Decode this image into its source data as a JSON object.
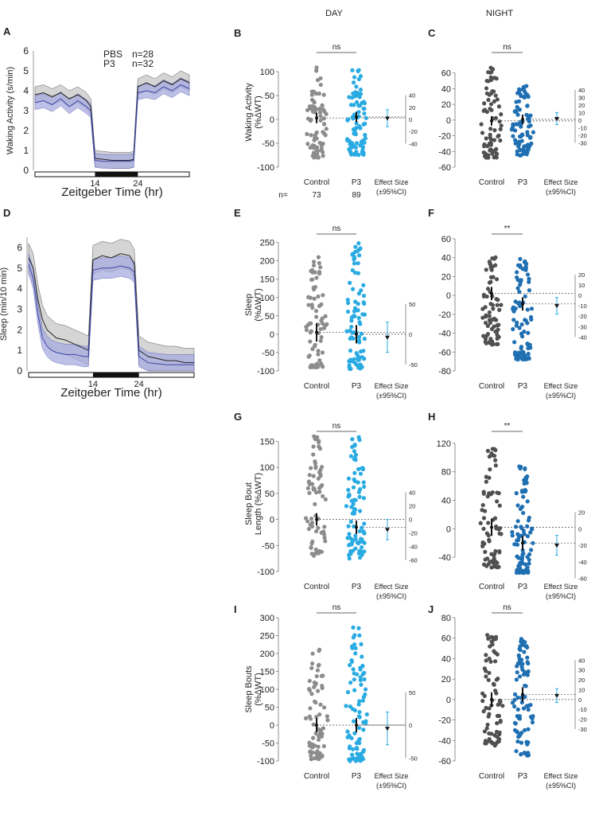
{
  "header": {
    "day": "DAY",
    "night": "NIGHT"
  },
  "colors": {
    "control_day": "#8c8c8c",
    "control_night": "#505050",
    "p3_day": "#29abe2",
    "p3_night": "#1f6fb2",
    "pbs_trace": "#222222",
    "pbs_band": "#c8c8c8",
    "p3_trace": "#3c46a5",
    "p3_band": "#a8acdf"
  },
  "chart_data": [
    {
      "id": "A",
      "letter": "A",
      "type": "line",
      "ylabel": "Waking Activity (s/min)",
      "xlabel": "Zeitgeber Time (hr)",
      "ylim": [
        0,
        6
      ],
      "yticks": [
        "0",
        "1",
        "2",
        "3",
        "4",
        "5",
        "6"
      ],
      "xticks": [
        {
          "value": 14,
          "label": "14"
        },
        {
          "value": 24,
          "label": "24"
        }
      ],
      "xlim": [
        0,
        36
      ],
      "dark_period": [
        14,
        24
      ],
      "legend": [
        {
          "name": "PBS",
          "n": "n=28"
        },
        {
          "name": "P3",
          "n": "n=32"
        }
      ],
      "series": [
        {
          "name": "PBS",
          "x": [
            0,
            2,
            4,
            6,
            8,
            10,
            12,
            13,
            14,
            16,
            18,
            20,
            22,
            23,
            24,
            26,
            28,
            30,
            32,
            34,
            36
          ],
          "y": [
            3.8,
            3.9,
            3.7,
            3.9,
            3.6,
            3.8,
            3.5,
            3.2,
            0.6,
            0.55,
            0.5,
            0.5,
            0.5,
            0.55,
            4.2,
            4.4,
            4.2,
            4.5,
            4.3,
            4.6,
            4.4
          ],
          "band": 0.4
        },
        {
          "name": "P3",
          "x": [
            0,
            2,
            4,
            6,
            8,
            10,
            12,
            13,
            14,
            16,
            18,
            20,
            22,
            23,
            24,
            26,
            28,
            30,
            32,
            34,
            36
          ],
          "y": [
            3.4,
            3.5,
            3.3,
            3.6,
            3.2,
            3.5,
            3.2,
            3.0,
            0.5,
            0.45,
            0.45,
            0.45,
            0.45,
            0.5,
            3.9,
            4.0,
            3.9,
            4.2,
            4.0,
            4.3,
            4.1
          ],
          "band": 0.35
        }
      ]
    },
    {
      "id": "B",
      "letter": "B",
      "type": "scatter",
      "period": "day",
      "ylabel1": "Waking Activity",
      "ylabel2": "(%ΔWT)",
      "ylim": [
        -100,
        130
      ],
      "yticks": [
        -100,
        -50,
        0,
        50,
        100
      ],
      "sig": "ns",
      "groups": [
        {
          "label": "Control",
          "n": "73",
          "mean": 3,
          "ci": [
            -8,
            14
          ],
          "count": 73,
          "range": [
            -80,
            110
          ]
        },
        {
          "label": "P3",
          "n": "89",
          "mean": 5,
          "ci": [
            -6,
            16
          ],
          "count": 89,
          "range": [
            -75,
            110
          ]
        }
      ],
      "n_label": "n=",
      "effect": {
        "label1": "Effect Size",
        "label2": "(±95%CI)",
        "mean": 2,
        "ci": [
          -12,
          16
        ],
        "ylim": [
          -50,
          50
        ],
        "yticks": [
          40,
          20,
          0,
          -20,
          -40
        ]
      }
    },
    {
      "id": "C",
      "letter": "C",
      "type": "scatter",
      "period": "night",
      "ylabel1": "",
      "ylabel2": "",
      "ylim": [
        -60,
        80
      ],
      "yticks": [
        -60,
        -40,
        -20,
        0,
        20,
        40,
        60
      ],
      "sig": "ns",
      "groups": [
        {
          "label": "Control",
          "mean": -1,
          "ci": [
            -7,
            5
          ],
          "count": 73,
          "range": [
            -48,
            68
          ]
        },
        {
          "label": "P3",
          "mean": 1,
          "ci": [
            -5,
            7
          ],
          "count": 89,
          "range": [
            -45,
            45
          ]
        }
      ],
      "effect": {
        "label1": "Effect Size",
        "label2": "(±95%CI)",
        "mean": 2,
        "ci": [
          -6,
          10
        ],
        "ylim": [
          -35,
          45
        ],
        "yticks": [
          40,
          30,
          20,
          10,
          0,
          -10,
          -20,
          -30
        ]
      }
    },
    {
      "id": "D",
      "letter": "D",
      "type": "line",
      "ylabel": "Sleep (min/10 min)",
      "xlabel": "Zeitgeber Time (hr)",
      "ylim": [
        0,
        6.5
      ],
      "yticks": [
        "0",
        "1",
        "2",
        "3",
        "4",
        "5",
        "6"
      ],
      "xticks": [
        {
          "value": 14,
          "label": "14"
        },
        {
          "value": 24,
          "label": "24"
        }
      ],
      "xlim": [
        0,
        36
      ],
      "dark_period": [
        14,
        24
      ],
      "series": [
        {
          "name": "PBS",
          "x": [
            0,
            1,
            2,
            3,
            4,
            5,
            6,
            8,
            10,
            12,
            13,
            14,
            16,
            18,
            20,
            22,
            23,
            24,
            26,
            28,
            30,
            32,
            34,
            36
          ],
          "y": [
            5.5,
            5.0,
            3.5,
            2.5,
            2.0,
            1.8,
            1.6,
            1.5,
            1.3,
            1.1,
            1.0,
            5.4,
            5.6,
            5.5,
            5.7,
            5.6,
            5.2,
            1.0,
            0.7,
            0.6,
            0.5,
            0.5,
            0.4,
            0.4
          ],
          "band": 0.7
        },
        {
          "name": "P3",
          "x": [
            0,
            1,
            2,
            3,
            4,
            5,
            6,
            8,
            10,
            12,
            13,
            14,
            16,
            18,
            20,
            22,
            23,
            24,
            26,
            28,
            30,
            32,
            34,
            36
          ],
          "y": [
            5.2,
            4.5,
            2.8,
            1.6,
            1.2,
            1.0,
            0.9,
            0.8,
            0.8,
            0.7,
            0.7,
            4.9,
            5.0,
            5.0,
            5.1,
            5.0,
            4.8,
            0.7,
            0.4,
            0.35,
            0.3,
            0.3,
            0.3,
            0.3
          ],
          "band": 0.5
        }
      ]
    },
    {
      "id": "E",
      "letter": "E",
      "type": "scatter",
      "period": "day",
      "ylabel1": "Sleep",
      "ylabel2": "(%ΔWT)",
      "ylim": [
        -100,
        260
      ],
      "yticks": [
        -100,
        -50,
        0,
        50,
        100,
        150,
        200,
        250
      ],
      "sig": "ns",
      "groups": [
        {
          "label": "Control",
          "mean": 5,
          "ci": [
            -20,
            30
          ],
          "count": 73,
          "range": [
            -90,
            225
          ]
        },
        {
          "label": "P3",
          "mean": 0,
          "ci": [
            -25,
            25
          ],
          "count": 89,
          "range": [
            -95,
            250
          ]
        }
      ],
      "effect": {
        "label1": "Effect Size",
        "label2": "(±95%CI)",
        "mean": -5,
        "ci": [
          -30,
          20
        ],
        "ylim": [
          -60,
          60
        ],
        "yticks": [
          50,
          0,
          -50
        ]
      }
    },
    {
      "id": "F",
      "letter": "F",
      "type": "scatter",
      "period": "night",
      "ylabel1": "",
      "ylabel2": "",
      "ylim": [
        -80,
        60
      ],
      "yticks": [
        -80,
        -60,
        -40,
        -20,
        0,
        20,
        40,
        60
      ],
      "sig": "**",
      "groups": [
        {
          "label": "Control",
          "mean": 2,
          "ci": [
            -5,
            9
          ],
          "count": 73,
          "range": [
            -52,
            45
          ]
        },
        {
          "label": "P3",
          "mean": -9,
          "ci": [
            -16,
            -2
          ],
          "count": 89,
          "range": [
            -68,
            45
          ]
        }
      ],
      "effect": {
        "label1": "Effect Size",
        "label2": "(±95%CI)",
        "mean": -10,
        "ci": [
          -18,
          -2
        ],
        "ylim": [
          -45,
          25
        ],
        "yticks": [
          20,
          10,
          0,
          -10,
          -20,
          -30,
          -40
        ]
      }
    },
    {
      "id": "G",
      "letter": "G",
      "type": "scatter",
      "period": "day",
      "ylabel1": "Sleep Bout",
      "ylabel2": "Length (%ΔWT)",
      "ylim": [
        -100,
        160
      ],
      "yticks": [
        -100,
        -50,
        0,
        50,
        100,
        150
      ],
      "sig": "ns",
      "groups": [
        {
          "label": "Control",
          "mean": 0,
          "ci": [
            -12,
            12
          ],
          "count": 73,
          "range": [
            -70,
            160
          ]
        },
        {
          "label": "P3",
          "mean": -15,
          "ci": [
            -28,
            -2
          ],
          "count": 89,
          "range": [
            -75,
            160
          ]
        }
      ],
      "effect": {
        "label1": "Effect Size",
        "label2": "(±95%CI)",
        "mean": -15,
        "ci": [
          -30,
          0
        ],
        "ylim": [
          -65,
          45
        ],
        "yticks": [
          40,
          20,
          0,
          -20,
          -40,
          -60
        ]
      }
    },
    {
      "id": "H",
      "letter": "H",
      "type": "scatter",
      "period": "night",
      "ylabel1": "",
      "ylabel2": "",
      "ylim": [
        -60,
        130
      ],
      "yticks": [
        -40,
        0,
        40,
        80,
        120
      ],
      "sig": "**",
      "groups": [
        {
          "label": "Control",
          "mean": 2,
          "ci": [
            -10,
            14
          ],
          "count": 73,
          "range": [
            -55,
            120
          ]
        },
        {
          "label": "P3",
          "mean": -20,
          "ci": [
            -30,
            -10
          ],
          "count": 89,
          "range": [
            -62,
            90
          ]
        }
      ],
      "effect": {
        "label1": "Effect Size",
        "label2": "(±95%CI)",
        "mean": -20,
        "ci": [
          -32,
          -8
        ],
        "ylim": [
          -65,
          25
        ],
        "yticks": [
          20,
          0,
          -20,
          -40,
          -60
        ]
      }
    },
    {
      "id": "I",
      "letter": "I",
      "type": "scatter",
      "period": "day",
      "ylabel1": "Sleep Bouts",
      "ylabel2": "(%ΔWT)",
      "ylim": [
        -100,
        300
      ],
      "yticks": [
        -100,
        -50,
        0,
        50,
        100,
        150,
        200,
        250,
        300
      ],
      "sig": "ns",
      "groups": [
        {
          "label": "Control",
          "mean": 0,
          "ci": [
            -20,
            20
          ],
          "count": 73,
          "range": [
            -95,
            220
          ]
        },
        {
          "label": "P3",
          "mean": 0,
          "ci": [
            -20,
            20
          ],
          "count": 89,
          "range": [
            -100,
            280
          ]
        }
      ],
      "effect": {
        "label1": "Effect Size",
        "label2": "(±95%CI)",
        "mean": -5,
        "ci": [
          -30,
          20
        ],
        "ylim": [
          -60,
          60
        ],
        "yticks": [
          50,
          0,
          -50
        ]
      }
    },
    {
      "id": "J",
      "letter": "J",
      "type": "scatter",
      "period": "night",
      "ylabel1": "",
      "ylabel2": "",
      "ylim": [
        -60,
        80
      ],
      "yticks": [
        -60,
        -40,
        -20,
        0,
        20,
        40,
        60,
        80
      ],
      "sig": "ns",
      "groups": [
        {
          "label": "Control",
          "mean": 0,
          "ci": [
            -7,
            7
          ],
          "count": 73,
          "range": [
            -45,
            67
          ]
        },
        {
          "label": "P3",
          "mean": 5,
          "ci": [
            -2,
            12
          ],
          "count": 89,
          "range": [
            -55,
            60
          ]
        }
      ],
      "effect": {
        "label1": "Effect Size",
        "label2": "(±95%CI)",
        "mean": 4,
        "ci": [
          -3,
          11
        ],
        "ylim": [
          -35,
          45
        ],
        "yticks": [
          40,
          30,
          20,
          10,
          0,
          -10,
          -20,
          -30
        ]
      }
    }
  ]
}
